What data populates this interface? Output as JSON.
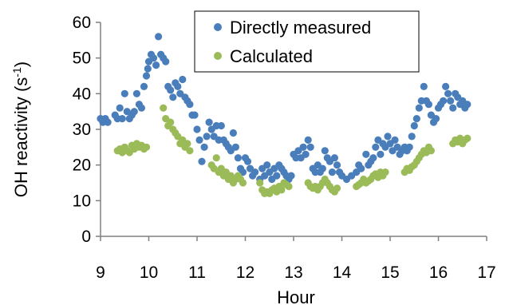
{
  "chart_data": {
    "type": "scatter",
    "xlabel": "Hour",
    "ylabel_main": "OH reactivity (s",
    "ylabel_sup": "-1",
    "ylabel_close": ")",
    "xlim": [
      9,
      17
    ],
    "ylim": [
      0,
      60
    ],
    "xticks": [
      "9",
      "10",
      "11",
      "12",
      "13",
      "14",
      "15",
      "16",
      "17"
    ],
    "yticks": [
      "0",
      "10",
      "20",
      "30",
      "40",
      "50",
      "60"
    ],
    "grid": false,
    "legend_position": "top-right",
    "series": [
      {
        "name": "Directly measured",
        "color": "#4a7ebb",
        "points": [
          [
            9.0,
            33
          ],
          [
            9.05,
            32
          ],
          [
            9.1,
            33
          ],
          [
            9.15,
            32
          ],
          [
            9.3,
            34
          ],
          [
            9.35,
            33
          ],
          [
            9.4,
            36
          ],
          [
            9.45,
            33
          ],
          [
            9.5,
            40
          ],
          [
            9.55,
            35
          ],
          [
            9.6,
            33
          ],
          [
            9.65,
            34
          ],
          [
            9.7,
            35
          ],
          [
            9.75,
            40
          ],
          [
            9.8,
            37
          ],
          [
            9.85,
            36
          ],
          [
            9.9,
            42
          ],
          [
            9.95,
            45
          ],
          [
            9.98,
            47
          ],
          [
            10.0,
            49
          ],
          [
            10.05,
            51
          ],
          [
            10.1,
            50
          ],
          [
            10.15,
            48
          ],
          [
            10.2,
            56
          ],
          [
            10.25,
            51
          ],
          [
            10.3,
            50
          ],
          [
            10.35,
            49
          ],
          [
            10.4,
            42
          ],
          [
            10.45,
            41
          ],
          [
            10.5,
            39
          ],
          [
            10.55,
            43
          ],
          [
            10.6,
            42
          ],
          [
            10.65,
            40
          ],
          [
            10.7,
            44
          ],
          [
            10.75,
            39
          ],
          [
            10.8,
            38
          ],
          [
            10.85,
            37
          ],
          [
            10.9,
            34
          ],
          [
            10.95,
            34
          ],
          [
            11.0,
            30
          ],
          [
            11.05,
            27
          ],
          [
            11.1,
            21
          ],
          [
            11.15,
            25
          ],
          [
            11.2,
            28
          ],
          [
            11.25,
            32
          ],
          [
            11.3,
            30
          ],
          [
            11.35,
            28
          ],
          [
            11.4,
            31
          ],
          [
            11.45,
            27
          ],
          [
            11.5,
            31
          ],
          [
            11.55,
            27
          ],
          [
            11.6,
            26
          ],
          [
            11.65,
            25
          ],
          [
            11.7,
            24
          ],
          [
            11.75,
            29
          ],
          [
            11.8,
            25
          ],
          [
            11.85,
            22
          ],
          [
            11.9,
            19
          ],
          [
            11.95,
            18
          ],
          [
            12.0,
            22
          ],
          [
            12.05,
            21
          ],
          [
            12.1,
            19
          ],
          [
            12.15,
            17
          ],
          [
            12.2,
            18
          ],
          [
            12.3,
            16
          ],
          [
            12.35,
            19
          ],
          [
            12.4,
            17
          ],
          [
            12.45,
            20
          ],
          [
            12.5,
            18
          ],
          [
            12.55,
            16
          ],
          [
            12.6,
            19
          ],
          [
            12.65,
            17
          ],
          [
            12.7,
            20
          ],
          [
            12.75,
            19
          ],
          [
            12.8,
            18
          ],
          [
            12.85,
            17
          ],
          [
            12.9,
            16
          ],
          [
            12.95,
            17
          ],
          [
            13.0,
            23
          ],
          [
            13.05,
            22
          ],
          [
            13.1,
            24
          ],
          [
            13.15,
            22
          ],
          [
            13.2,
            25
          ],
          [
            13.25,
            23
          ],
          [
            13.3,
            27
          ],
          [
            13.35,
            25
          ],
          [
            13.4,
            19
          ],
          [
            13.45,
            18
          ],
          [
            13.5,
            20
          ],
          [
            13.55,
            18
          ],
          [
            13.6,
            19
          ],
          [
            13.65,
            24
          ],
          [
            13.7,
            22
          ],
          [
            13.75,
            21
          ],
          [
            13.8,
            18
          ],
          [
            13.85,
            22
          ],
          [
            13.9,
            20
          ],
          [
            13.95,
            18
          ],
          [
            14.0,
            17
          ],
          [
            14.1,
            16
          ],
          [
            14.2,
            17
          ],
          [
            14.3,
            18
          ],
          [
            14.35,
            20
          ],
          [
            14.4,
            19
          ],
          [
            14.5,
            23
          ],
          [
            14.55,
            20
          ],
          [
            14.6,
            21
          ],
          [
            14.65,
            22
          ],
          [
            14.7,
            25
          ],
          [
            14.75,
            27
          ],
          [
            14.8,
            23
          ],
          [
            14.85,
            26
          ],
          [
            14.9,
            25
          ],
          [
            14.95,
            28
          ],
          [
            15.0,
            26
          ],
          [
            15.05,
            24
          ],
          [
            15.1,
            27
          ],
          [
            15.15,
            25
          ],
          [
            15.2,
            23
          ],
          [
            15.25,
            24
          ],
          [
            15.3,
            25
          ],
          [
            15.35,
            24
          ],
          [
            15.4,
            25
          ],
          [
            15.45,
            28
          ],
          [
            15.5,
            31
          ],
          [
            15.55,
            33
          ],
          [
            15.6,
            36
          ],
          [
            15.65,
            38
          ],
          [
            15.7,
            42
          ],
          [
            15.75,
            38
          ],
          [
            15.8,
            37
          ],
          [
            15.85,
            34
          ],
          [
            15.9,
            32
          ],
          [
            15.95,
            33
          ],
          [
            16.0,
            36
          ],
          [
            16.05,
            37
          ],
          [
            16.1,
            38
          ],
          [
            16.15,
            42
          ],
          [
            16.2,
            40
          ],
          [
            16.25,
            38
          ],
          [
            16.3,
            36
          ],
          [
            16.35,
            40
          ],
          [
            16.4,
            39
          ],
          [
            16.45,
            37
          ],
          [
            16.5,
            38
          ],
          [
            16.55,
            36
          ],
          [
            16.6,
            37
          ]
        ]
      },
      {
        "name": "Calculated",
        "color": "#9bbb59",
        "points": [
          [
            9.35,
            24
          ],
          [
            9.4,
            24.5
          ],
          [
            9.45,
            23.5
          ],
          [
            9.5,
            25
          ],
          [
            9.55,
            24
          ],
          [
            9.6,
            23.5
          ],
          [
            9.65,
            25.5
          ],
          [
            9.7,
            24.5
          ],
          [
            9.75,
            26
          ],
          [
            9.8,
            25
          ],
          [
            9.85,
            25.5
          ],
          [
            9.9,
            24.5
          ],
          [
            9.95,
            25
          ],
          [
            10.3,
            36
          ],
          [
            10.35,
            33
          ],
          [
            10.4,
            31
          ],
          [
            10.45,
            32
          ],
          [
            10.5,
            30
          ],
          [
            10.55,
            29
          ],
          [
            10.6,
            28
          ],
          [
            10.65,
            26
          ],
          [
            10.7,
            27
          ],
          [
            10.75,
            25
          ],
          [
            10.8,
            26
          ],
          [
            10.85,
            24
          ],
          [
            11.3,
            20
          ],
          [
            11.35,
            19
          ],
          [
            11.4,
            22
          ],
          [
            11.45,
            18
          ],
          [
            11.5,
            19
          ],
          [
            11.55,
            17
          ],
          [
            11.6,
            18
          ],
          [
            11.65,
            16
          ],
          [
            11.7,
            17
          ],
          [
            11.75,
            15
          ],
          [
            11.8,
            16
          ],
          [
            11.85,
            17
          ],
          [
            11.9,
            16
          ],
          [
            11.95,
            15
          ],
          [
            12.3,
            15
          ],
          [
            12.35,
            13
          ],
          [
            12.4,
            12
          ],
          [
            12.45,
            12.5
          ],
          [
            12.5,
            12
          ],
          [
            12.55,
            13
          ],
          [
            12.6,
            13.5
          ],
          [
            12.65,
            12.5
          ],
          [
            12.7,
            14
          ],
          [
            12.75,
            13
          ],
          [
            12.8,
            15
          ],
          [
            12.85,
            14.5
          ],
          [
            12.9,
            14
          ],
          [
            13.3,
            15
          ],
          [
            13.35,
            14
          ],
          [
            13.4,
            13.5
          ],
          [
            13.45,
            14
          ],
          [
            13.5,
            13
          ],
          [
            13.55,
            14
          ],
          [
            13.6,
            15
          ],
          [
            13.65,
            16
          ],
          [
            13.7,
            15
          ],
          [
            13.75,
            14
          ],
          [
            13.8,
            13
          ],
          [
            13.85,
            12.5
          ],
          [
            13.9,
            13.5
          ],
          [
            14.3,
            14
          ],
          [
            14.35,
            14.5
          ],
          [
            14.4,
            15
          ],
          [
            14.45,
            16
          ],
          [
            14.5,
            15
          ],
          [
            14.55,
            15.5
          ],
          [
            14.6,
            16
          ],
          [
            14.65,
            17
          ],
          [
            14.7,
            17.5
          ],
          [
            14.75,
            16.5
          ],
          [
            14.8,
            18
          ],
          [
            14.85,
            17
          ],
          [
            14.9,
            18
          ],
          [
            15.3,
            18
          ],
          [
            15.35,
            19
          ],
          [
            15.4,
            18.5
          ],
          [
            15.45,
            19.5
          ],
          [
            15.5,
            20
          ],
          [
            15.55,
            21
          ],
          [
            15.6,
            22
          ],
          [
            15.65,
            23
          ],
          [
            15.7,
            24
          ],
          [
            15.75,
            23.5
          ],
          [
            15.8,
            25
          ],
          [
            15.85,
            24
          ],
          [
            16.3,
            26
          ],
          [
            16.35,
            27
          ],
          [
            16.4,
            26.5
          ],
          [
            16.45,
            27.5
          ],
          [
            16.5,
            26
          ],
          [
            16.55,
            27
          ],
          [
            16.6,
            27.5
          ]
        ]
      }
    ]
  }
}
